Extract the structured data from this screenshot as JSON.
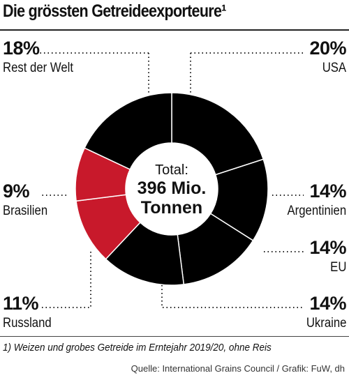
{
  "chart_data": {
    "type": "pie",
    "title": "Die grössten Getreideexporteure¹",
    "center_label": [
      "Total:",
      "396 Mio.",
      "Tonnen"
    ],
    "categories": [
      "USA",
      "Argentinien",
      "EU",
      "Ukraine",
      "Russland",
      "Brasilien",
      "Rest der Welt"
    ],
    "values": [
      20,
      14,
      14,
      14,
      11,
      9,
      18
    ],
    "value_labels": [
      "20%",
      "14%",
      "14%",
      "14%",
      "11%",
      "9%",
      "18%"
    ],
    "colors": [
      "#000000",
      "#000000",
      "#000000",
      "#000000",
      "#c8192b",
      "#c8192b",
      "#000000"
    ],
    "donut": true
  },
  "footnote": "1) Weizen und grobes Getreide im Erntejahr 2019/20, ohne Reis",
  "source": "Quelle: International Grains Council / Grafik: FuW, dh"
}
